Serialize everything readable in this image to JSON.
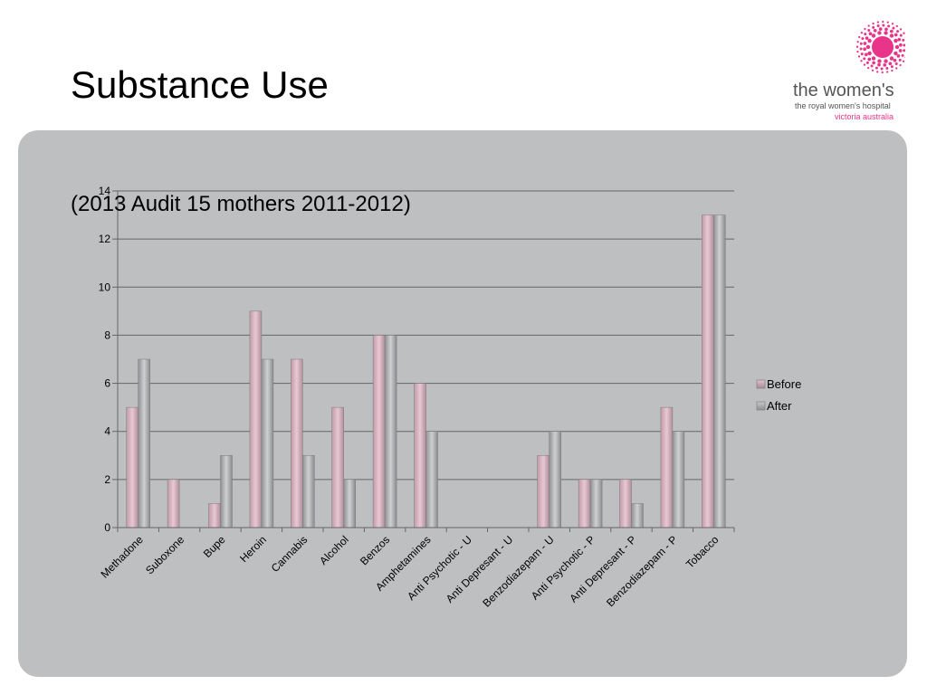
{
  "slide": {
    "title": "Substance Use",
    "subtitle": "(2013 Audit 15 mothers 2011-2012)"
  },
  "logo": {
    "line1": "the women's",
    "line2": "the royal women's hospital",
    "line3": "victoria australia",
    "accent_color": "#e8358a",
    "icon": "pink-dotted-flower-logo"
  },
  "chart_data": {
    "type": "bar",
    "categories": [
      "Methadone",
      "Suboxone",
      "Bupe",
      "Heroin",
      "Cannabis",
      "Alcohol",
      "Benzos",
      "Amphetamines",
      "Anti Psychotic - U",
      "Anti Depresant - U",
      "Benzodiazepam - U",
      "Anti Psychotic - P",
      "Anti Depresant - P",
      "Benzodiazepam - P",
      "Tobacco"
    ],
    "series": [
      {
        "name": "Before",
        "values": [
          5,
          2,
          1,
          9,
          7,
          5,
          8,
          6,
          0,
          0,
          3,
          2,
          2,
          5,
          13
        ],
        "color": "#c9a7b2"
      },
      {
        "name": "After",
        "values": [
          7,
          0,
          3,
          7,
          3,
          2,
          8,
          4,
          0,
          0,
          4,
          2,
          1,
          4,
          13
        ],
        "color": "#a3a5a8"
      }
    ],
    "ylim": [
      0,
      14
    ],
    "yticks": [
      0,
      2,
      4,
      6,
      8,
      10,
      12,
      14
    ],
    "grid": true,
    "legend_position": "right"
  }
}
